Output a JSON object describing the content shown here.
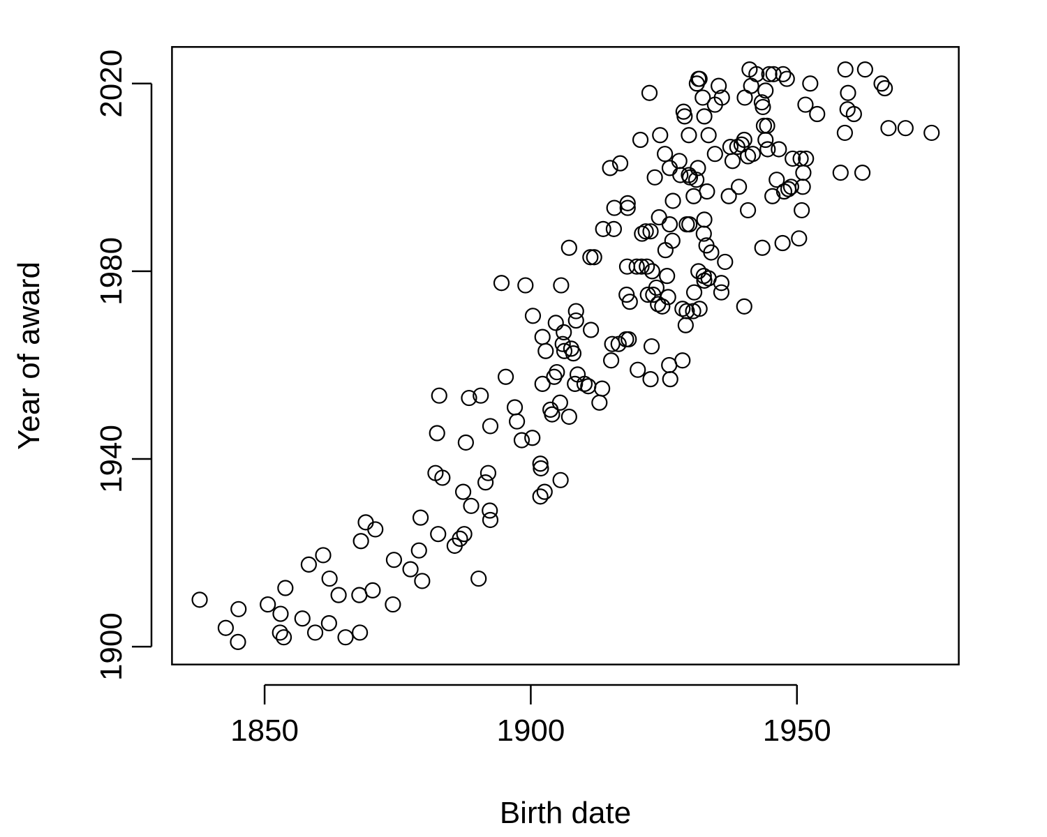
{
  "chart_data": {
    "type": "scatter",
    "title": "",
    "xlabel": "Birth date",
    "ylabel": "Year of award",
    "xlim": [
      1832.6,
      1980.4
    ],
    "ylim": [
      1896.2,
      2027.8
    ],
    "x_ticks": [
      "1850",
      "1900",
      "1950"
    ],
    "y_ticks": [
      "1900",
      "1940",
      "1980",
      "2020"
    ],
    "x_tick_values": [
      1850,
      1900,
      1950
    ],
    "y_tick_values": [
      1900,
      1940,
      1980,
      2020
    ],
    "grid": false,
    "legend": "none",
    "marker": "open-circle",
    "color": "#000000",
    "points": [
      [
        1837.8,
        1910.0
      ],
      [
        1842.7,
        1904.0
      ],
      [
        1845.1,
        1908.0
      ],
      [
        1845.0,
        1901.0
      ],
      [
        1850.6,
        1909.0
      ],
      [
        1853.0,
        1907.0
      ],
      [
        1852.9,
        1903.0
      ],
      [
        1853.6,
        1902.0
      ],
      [
        1853.9,
        1912.5
      ],
      [
        1857.1,
        1906.0
      ],
      [
        1858.3,
        1917.5
      ],
      [
        1859.5,
        1903.0
      ],
      [
        1861.0,
        1919.5
      ],
      [
        1862.1,
        1905.0
      ],
      [
        1862.2,
        1914.5
      ],
      [
        1863.9,
        1911.0
      ],
      [
        1865.2,
        1902.0
      ],
      [
        1867.8,
        1911.0
      ],
      [
        1867.9,
        1903.0
      ],
      [
        1868.1,
        1922.5
      ],
      [
        1869.0,
        1926.5
      ],
      [
        1870.3,
        1912.0
      ],
      [
        1870.8,
        1925.0
      ],
      [
        1874.1,
        1909.0
      ],
      [
        1874.3,
        1918.5
      ],
      [
        1877.4,
        1916.5
      ],
      [
        1879.3,
        1927.5
      ],
      [
        1879.0,
        1920.5
      ],
      [
        1879.6,
        1914.0
      ],
      [
        1882.1,
        1937.0
      ],
      [
        1882.4,
        1945.5
      ],
      [
        1882.6,
        1924.0
      ],
      [
        1882.8,
        1953.5
      ],
      [
        1883.4,
        1936.0
      ],
      [
        1885.7,
        1921.5
      ],
      [
        1886.7,
        1923.0
      ],
      [
        1887.5,
        1924.0
      ],
      [
        1887.3,
        1933.0
      ],
      [
        1887.8,
        1943.5
      ],
      [
        1888.4,
        1953.0
      ],
      [
        1888.8,
        1930.0
      ],
      [
        1890.2,
        1914.5
      ],
      [
        1890.6,
        1953.5
      ],
      [
        1891.5,
        1935.0
      ],
      [
        1892.0,
        1937.0
      ],
      [
        1892.3,
        1929.0
      ],
      [
        1892.4,
        1927.0
      ],
      [
        1892.4,
        1947.0
      ],
      [
        1894.5,
        1977.5
      ],
      [
        1895.3,
        1957.5
      ],
      [
        1897.0,
        1951.0
      ],
      [
        1897.4,
        1948.0
      ],
      [
        1898.3,
        1944.0
      ],
      [
        1899.0,
        1977.0
      ],
      [
        1900.3,
        1944.5
      ],
      [
        1900.4,
        1970.5
      ],
      [
        1901.8,
        1939.0
      ],
      [
        1901.9,
        1938.0
      ],
      [
        1901.8,
        1932.0
      ],
      [
        1902.6,
        1933.0
      ],
      [
        1902.2,
        1956.0
      ],
      [
        1902.2,
        1966.0
      ],
      [
        1902.8,
        1963.0
      ],
      [
        1903.7,
        1950.5
      ],
      [
        1904.0,
        1949.5
      ],
      [
        1904.4,
        1957.5
      ],
      [
        1904.7,
        1969.0
      ],
      [
        1904.9,
        1958.5
      ],
      [
        1905.5,
        1952.0
      ],
      [
        1905.6,
        1935.5
      ],
      [
        1905.7,
        1977.0
      ],
      [
        1906.0,
        1964.5
      ],
      [
        1906.2,
        1967.0
      ],
      [
        1906.3,
        1963.0
      ],
      [
        1907.2,
        1985.0
      ],
      [
        1907.2,
        1949.0
      ],
      [
        1907.6,
        1963.5
      ],
      [
        1908.0,
        1962.5
      ],
      [
        1908.3,
        1956.0
      ],
      [
        1908.5,
        1971.5
      ],
      [
        1908.5,
        1969.5
      ],
      [
        1908.8,
        1958.0
      ],
      [
        1910.1,
        1956.0
      ],
      [
        1910.8,
        1955.5
      ],
      [
        1911.2,
        1983.0
      ],
      [
        1911.3,
        1967.5
      ],
      [
        1911.9,
        1983.0
      ],
      [
        1912.9,
        1952.0
      ],
      [
        1913.4,
        1955.0
      ],
      [
        1913.6,
        1989.0
      ],
      [
        1914.9,
        2002.0
      ],
      [
        1915.1,
        1961.0
      ],
      [
        1915.3,
        1964.5
      ],
      [
        1915.7,
        1993.5
      ],
      [
        1915.6,
        1989.0
      ],
      [
        1916.8,
        2003.0
      ],
      [
        1916.5,
        1964.5
      ],
      [
        1917.9,
        1965.5
      ],
      [
        1918.0,
        1975.0
      ],
      [
        1918.1,
        1981.0
      ],
      [
        1918.2,
        1994.5
      ],
      [
        1918.2,
        1993.5
      ],
      [
        1918.4,
        1965.5
      ],
      [
        1918.6,
        1973.5
      ],
      [
        1919.9,
        1981.0
      ],
      [
        1920.1,
        1959.0
      ],
      [
        1920.6,
        2008.0
      ],
      [
        1920.9,
        1988.0
      ],
      [
        1920.8,
        1981.0
      ],
      [
        1921.6,
        1988.5
      ],
      [
        1921.8,
        1981.0
      ],
      [
        1922.0,
        1975.0
      ],
      [
        1922.3,
        2018.0
      ],
      [
        1922.5,
        1988.5
      ],
      [
        1922.5,
        1957.0
      ],
      [
        1922.7,
        1964.0
      ],
      [
        1922.8,
        1980.0
      ],
      [
        1923.0,
        1975.0
      ],
      [
        1923.3,
        2000.0
      ],
      [
        1923.6,
        1976.5
      ],
      [
        1923.9,
        1973.0
      ],
      [
        1924.1,
        1991.5
      ],
      [
        1924.3,
        2009.0
      ],
      [
        1924.7,
        1972.5
      ],
      [
        1925.2,
        2005.0
      ],
      [
        1925.3,
        1984.5
      ],
      [
        1925.6,
        1979.0
      ],
      [
        1925.8,
        1974.5
      ],
      [
        1926.0,
        1960.0
      ],
      [
        1926.1,
        2002.0
      ],
      [
        1926.1,
        1990.0
      ],
      [
        1926.2,
        1957.0
      ],
      [
        1926.6,
        1986.5
      ],
      [
        1926.7,
        1995.0
      ],
      [
        1927.9,
        2003.5
      ],
      [
        1928.1,
        2000.5
      ],
      [
        1928.5,
        1972.0
      ],
      [
        1928.5,
        1961.0
      ],
      [
        1928.7,
        2014.0
      ],
      [
        1928.9,
        2013.0
      ],
      [
        1929.1,
        1968.5
      ],
      [
        1929.3,
        1971.5
      ],
      [
        1929.3,
        1990.0
      ],
      [
        1929.7,
        2000.5
      ],
      [
        1929.7,
        2009.0
      ],
      [
        1929.8,
        1990.0
      ],
      [
        1929.9,
        2000.0
      ],
      [
        1930.5,
        1971.5
      ],
      [
        1930.6,
        1996.0
      ],
      [
        1930.7,
        1975.5
      ],
      [
        1931.1,
        1999.5
      ],
      [
        1931.2,
        2020.0
      ],
      [
        1931.4,
        2002.0
      ],
      [
        1931.5,
        2021.0
      ],
      [
        1931.5,
        1980.0
      ],
      [
        1931.7,
        1972.0
      ],
      [
        1931.7,
        2021.0
      ],
      [
        1932.3,
        2017.0
      ],
      [
        1932.5,
        1979.0
      ],
      [
        1932.5,
        1988.0
      ],
      [
        1932.6,
        1991.0
      ],
      [
        1932.6,
        2013.0
      ],
      [
        1932.6,
        1978.0
      ],
      [
        1933.1,
        1997.0
      ],
      [
        1933.0,
        1985.5
      ],
      [
        1933.4,
        2009.0
      ],
      [
        1933.4,
        1978.5
      ],
      [
        1933.9,
        1984.0
      ],
      [
        1934.6,
        2005.0
      ],
      [
        1934.6,
        2015.5
      ],
      [
        1935.3,
        2019.5
      ],
      [
        1935.9,
        2017.0
      ],
      [
        1935.8,
        1975.5
      ],
      [
        1935.8,
        1977.5
      ],
      [
        1936.5,
        1982.0
      ],
      [
        1937.2,
        1996.0
      ],
      [
        1937.5,
        2006.5
      ],
      [
        1937.9,
        2003.5
      ],
      [
        1938.8,
        2006.5
      ],
      [
        1939.1,
        1998.0
      ],
      [
        1939.6,
        2007.0
      ],
      [
        1940.1,
        1972.5
      ],
      [
        1940.1,
        2008.0
      ],
      [
        1940.2,
        2017.0
      ],
      [
        1940.8,
        1993.0
      ],
      [
        1940.8,
        2004.5
      ],
      [
        1941.1,
        2023.0
      ],
      [
        1941.4,
        2019.5
      ],
      [
        1941.7,
        2005.0
      ],
      [
        1942.4,
        2022.0
      ],
      [
        1943.4,
        2016.0
      ],
      [
        1943.5,
        1985.0
      ],
      [
        1943.6,
        2015.0
      ],
      [
        1943.8,
        2011.0
      ],
      [
        1944.1,
        2008.0
      ],
      [
        1944.1,
        2018.5
      ],
      [
        1944.4,
        2011.0
      ],
      [
        1944.5,
        2006.0
      ],
      [
        1944.8,
        2022.0
      ],
      [
        1945.4,
        1996.0
      ],
      [
        1945.6,
        2022.0
      ],
      [
        1946.2,
        1999.5
      ],
      [
        1946.6,
        2006.0
      ],
      [
        1947.3,
        1986.0
      ],
      [
        1947.4,
        2022.0
      ],
      [
        1947.6,
        1997.0
      ],
      [
        1948.1,
        2021.0
      ],
      [
        1948.4,
        1997.5
      ],
      [
        1948.9,
        1998.0
      ],
      [
        1949.2,
        2004.0
      ],
      [
        1950.4,
        1987.0
      ],
      [
        1950.7,
        2004.0
      ],
      [
        1950.9,
        1993.0
      ],
      [
        1951.1,
        1998.0
      ],
      [
        1951.2,
        2001.0
      ],
      [
        1951.6,
        2015.5
      ],
      [
        1951.7,
        2004.0
      ],
      [
        1952.5,
        2020.0
      ],
      [
        1953.8,
        2013.5
      ],
      [
        1958.2,
        2001.0
      ],
      [
        1959.1,
        2023.0
      ],
      [
        1959.0,
        2009.5
      ],
      [
        1959.5,
        2014.5
      ],
      [
        1959.6,
        2018.0
      ],
      [
        1960.7,
        2013.5
      ],
      [
        1962.3,
        2001.0
      ],
      [
        1962.8,
        2023.0
      ],
      [
        1965.9,
        2020.0
      ],
      [
        1966.5,
        2019.0
      ],
      [
        1967.2,
        2010.5
      ],
      [
        1970.4,
        2010.5
      ],
      [
        1975.3,
        2009.5
      ]
    ]
  }
}
